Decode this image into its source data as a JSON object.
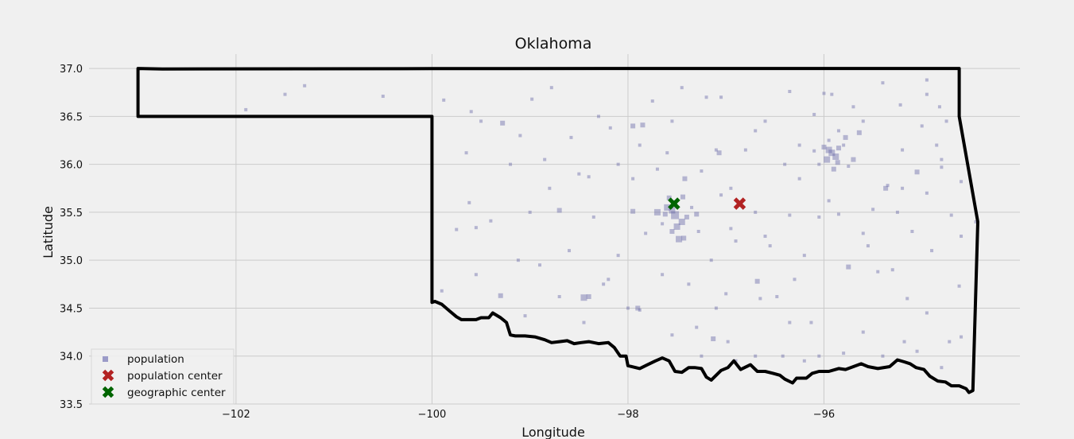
{
  "chart_data": {
    "type": "scatter",
    "title": "Oklahoma",
    "xlabel": "Longitude",
    "ylabel": "Latitude",
    "xlim": [
      -103.5,
      -94.0
    ],
    "ylim": [
      33.5,
      37.15
    ],
    "xticks": [
      -102,
      -100,
      -98,
      -96
    ],
    "xtick_labels": [
      "−102",
      "−100",
      "−98",
      "−96"
    ],
    "yticks": [
      33.5,
      34.0,
      34.5,
      35.0,
      35.5,
      36.0,
      36.5,
      37.0
    ],
    "ytick_labels": [
      "33.5",
      "34.0",
      "34.5",
      "35.0",
      "35.5",
      "36.0",
      "36.5",
      "37.0"
    ],
    "grid": true,
    "legend_position": "lower-left",
    "legend": [
      {
        "label": "population",
        "marker": "square",
        "color": "#9b9bc8"
      },
      {
        "label": "population center",
        "marker": "x",
        "color": "#b22222"
      },
      {
        "label": "geographic center",
        "marker": "x",
        "color": "#006400"
      }
    ],
    "colors": {
      "background": "#f0f0f0",
      "grid": "#cbcbcb",
      "population": "#6a6aa8",
      "population_center": "#b22222",
      "geographic_center": "#006400",
      "boundary": "#000000"
    },
    "series": [
      {
        "name": "population center",
        "x": [
          -96.86
        ],
        "y": [
          35.59
        ]
      },
      {
        "name": "geographic center",
        "x": [
          -97.53
        ],
        "y": [
          35.59
        ]
      },
      {
        "name": "population",
        "points": [
          [
            -97.52,
            35.47,
            5
          ],
          [
            -97.55,
            35.52,
            4
          ],
          [
            -97.6,
            35.55,
            4
          ],
          [
            -97.45,
            35.4,
            4
          ],
          [
            -97.5,
            35.35,
            4
          ],
          [
            -97.4,
            35.45,
            3
          ],
          [
            -97.62,
            35.48,
            3
          ],
          [
            -97.48,
            35.22,
            4
          ],
          [
            -97.43,
            35.23,
            3
          ],
          [
            -97.52,
            35.6,
            3
          ],
          [
            -97.58,
            35.65,
            3
          ],
          [
            -97.7,
            35.5,
            4
          ],
          [
            -97.3,
            35.48,
            3
          ],
          [
            -97.44,
            35.66,
            3
          ],
          [
            -97.42,
            35.85,
            3
          ],
          [
            -97.55,
            35.3,
            3
          ],
          [
            -97.65,
            35.38,
            2
          ],
          [
            -97.35,
            35.55,
            2
          ],
          [
            -97.28,
            35.3,
            2
          ],
          [
            -97.95,
            35.51,
            3
          ],
          [
            -97.82,
            35.28,
            2
          ],
          [
            -95.92,
            36.12,
            4
          ],
          [
            -95.95,
            36.15,
            4
          ],
          [
            -95.88,
            36.08,
            4
          ],
          [
            -95.97,
            36.05,
            4
          ],
          [
            -95.86,
            36.02,
            3
          ],
          [
            -96.0,
            36.18,
            3
          ],
          [
            -95.8,
            36.2,
            2
          ],
          [
            -95.78,
            36.28,
            3
          ],
          [
            -95.85,
            36.35,
            2
          ],
          [
            -95.7,
            36.05,
            3
          ],
          [
            -95.9,
            35.95,
            3
          ],
          [
            -96.05,
            36.0,
            2
          ],
          [
            -95.64,
            36.33,
            3
          ],
          [
            -96.1,
            36.14,
            2
          ],
          [
            -95.95,
            36.25,
            2
          ],
          [
            -95.85,
            36.17,
            3
          ],
          [
            -95.75,
            35.98,
            2
          ],
          [
            -95.6,
            36.45,
            2
          ],
          [
            -97.07,
            36.12,
            3
          ],
          [
            -97.1,
            36.15,
            2
          ],
          [
            -97.2,
            36.7,
            2
          ],
          [
            -97.05,
            36.7,
            2
          ],
          [
            -97.85,
            36.41,
            3
          ],
          [
            -97.95,
            36.4,
            3
          ],
          [
            -98.45,
            34.61,
            4
          ],
          [
            -98.4,
            34.62,
            3
          ],
          [
            -98.25,
            34.75,
            2
          ],
          [
            -97.9,
            34.5,
            3
          ],
          [
            -98.0,
            34.5,
            2
          ],
          [
            -96.68,
            34.78,
            3
          ],
          [
            -97.13,
            34.18,
            3
          ],
          [
            -96.42,
            34.0,
            2
          ],
          [
            -95.45,
            34.88,
            2
          ],
          [
            -95.75,
            34.93,
            3
          ],
          [
            -95.05,
            35.92,
            3
          ],
          [
            -94.95,
            35.7,
            2
          ],
          [
            -95.37,
            35.75,
            3
          ],
          [
            -95.2,
            35.75,
            2
          ],
          [
            -94.8,
            36.05,
            2
          ],
          [
            -94.82,
            36.6,
            2
          ],
          [
            -94.95,
            36.88,
            2
          ],
          [
            -95.22,
            36.62,
            2
          ],
          [
            -94.7,
            35.47,
            2
          ],
          [
            -94.45,
            35.4,
            2
          ],
          [
            -94.6,
            35.25,
            2
          ],
          [
            -95.85,
            35.48,
            2
          ],
          [
            -96.35,
            35.47,
            2
          ],
          [
            -96.6,
            35.25,
            2
          ],
          [
            -96.95,
            35.33,
            2
          ],
          [
            -96.48,
            34.62,
            2
          ],
          [
            -98.98,
            36.68,
            2
          ],
          [
            -99.28,
            36.43,
            3
          ],
          [
            -99.4,
            35.41,
            2
          ],
          [
            -99.55,
            35.34,
            2
          ],
          [
            -99.3,
            34.63,
            3
          ],
          [
            -99.0,
            35.5,
            2
          ],
          [
            -98.7,
            35.52,
            3
          ],
          [
            -98.1,
            35.05,
            2
          ],
          [
            -98.2,
            34.8,
            2
          ],
          [
            -97.65,
            34.85,
            2
          ],
          [
            -97.38,
            34.75,
            2
          ],
          [
            -97.1,
            34.5,
            2
          ],
          [
            -96.98,
            34.15,
            2
          ],
          [
            -96.7,
            34.0,
            2
          ],
          [
            -96.9,
            33.95,
            2
          ],
          [
            -96.35,
            34.35,
            2
          ],
          [
            -96.13,
            34.35,
            2
          ],
          [
            -95.6,
            34.25,
            2
          ],
          [
            -95.4,
            34.0,
            2
          ],
          [
            -94.8,
            33.88,
            2
          ],
          [
            -94.72,
            34.15,
            2
          ],
          [
            -95.3,
            34.9,
            2
          ],
          [
            -95.6,
            35.28,
            2
          ],
          [
            -95.95,
            35.62,
            2
          ],
          [
            -96.05,
            35.45,
            2
          ],
          [
            -96.25,
            35.85,
            2
          ],
          [
            -96.4,
            36.0,
            2
          ],
          [
            -96.7,
            36.35,
            2
          ],
          [
            -97.45,
            36.8,
            2
          ],
          [
            -97.75,
            36.66,
            2
          ],
          [
            -98.78,
            36.8,
            2
          ],
          [
            -99.88,
            36.67,
            2
          ],
          [
            -101.5,
            36.73,
            2
          ],
          [
            -101.3,
            36.82,
            2
          ],
          [
            -100.5,
            36.71,
            2
          ],
          [
            -101.9,
            36.57,
            2
          ],
          [
            -99.6,
            36.55,
            2
          ],
          [
            -99.5,
            36.45,
            2
          ],
          [
            -99.1,
            36.3,
            2
          ],
          [
            -98.58,
            36.28,
            2
          ],
          [
            -98.18,
            36.38,
            2
          ],
          [
            -98.3,
            36.5,
            2
          ],
          [
            -97.88,
            36.2,
            2
          ],
          [
            -97.25,
            35.93,
            2
          ],
          [
            -97.6,
            36.12,
            2
          ],
          [
            -97.95,
            35.85,
            2
          ],
          [
            -98.4,
            35.87,
            2
          ],
          [
            -98.8,
            35.75,
            2
          ],
          [
            -99.62,
            35.6,
            2
          ],
          [
            -99.75,
            35.32,
            2
          ],
          [
            -99.9,
            34.68,
            2
          ],
          [
            -99.55,
            34.85,
            2
          ],
          [
            -99.05,
            34.42,
            2
          ],
          [
            -98.7,
            34.62,
            2
          ],
          [
            -98.45,
            34.35,
            2
          ],
          [
            -97.88,
            34.48,
            2
          ],
          [
            -97.55,
            34.22,
            2
          ],
          [
            -97.25,
            34.0,
            2
          ],
          [
            -96.2,
            33.95,
            2
          ],
          [
            -96.05,
            34.0,
            2
          ],
          [
            -95.8,
            34.03,
            2
          ],
          [
            -95.18,
            34.15,
            2
          ],
          [
            -95.05,
            34.05,
            2
          ],
          [
            -94.6,
            34.2,
            2
          ],
          [
            -94.62,
            34.73,
            2
          ],
          [
            -94.9,
            35.1,
            2
          ],
          [
            -95.1,
            35.3,
            2
          ],
          [
            -95.25,
            35.5,
            2
          ],
          [
            -95.5,
            35.53,
            2
          ],
          [
            -95.35,
            35.78,
            2
          ],
          [
            -95.2,
            36.15,
            2
          ],
          [
            -95.0,
            36.4,
            2
          ],
          [
            -94.75,
            36.45,
            2
          ],
          [
            -94.85,
            36.2,
            2
          ],
          [
            -94.6,
            35.82,
            2
          ],
          [
            -94.8,
            35.97,
            2
          ],
          [
            -96.0,
            36.74,
            2
          ],
          [
            -95.92,
            36.73,
            2
          ],
          [
            -96.35,
            36.76,
            2
          ],
          [
            -96.6,
            36.45,
            2
          ],
          [
            -96.8,
            36.15,
            2
          ],
          [
            -96.95,
            35.75,
            2
          ],
          [
            -97.05,
            35.68,
            2
          ],
          [
            -96.7,
            35.5,
            2
          ],
          [
            -96.9,
            35.2,
            2
          ],
          [
            -97.15,
            35.0,
            2
          ],
          [
            -96.55,
            35.15,
            2
          ],
          [
            -96.2,
            35.05,
            2
          ],
          [
            -96.3,
            34.8,
            2
          ],
          [
            -96.65,
            34.6,
            2
          ],
          [
            -97.0,
            34.65,
            2
          ],
          [
            -97.3,
            34.3,
            2
          ],
          [
            -95.55,
            35.15,
            2
          ],
          [
            -95.15,
            34.6,
            2
          ],
          [
            -94.95,
            34.45,
            2
          ],
          [
            -98.6,
            35.1,
            2
          ],
          [
            -98.9,
            34.95,
            2
          ],
          [
            -99.12,
            35.0,
            2
          ],
          [
            -98.35,
            35.45,
            2
          ],
          [
            -98.5,
            35.9,
            2
          ],
          [
            -98.85,
            36.05,
            2
          ],
          [
            -99.2,
            36.0,
            2
          ],
          [
            -99.65,
            36.12,
            2
          ],
          [
            -98.1,
            36.0,
            2
          ],
          [
            -97.7,
            35.95,
            2
          ],
          [
            -97.55,
            36.45,
            2
          ],
          [
            -96.25,
            36.2,
            2
          ],
          [
            -96.1,
            36.52,
            2
          ],
          [
            -95.7,
            36.6,
            2
          ],
          [
            -95.4,
            36.85,
            2
          ],
          [
            -94.95,
            36.73,
            2
          ]
        ]
      }
    ],
    "boundary": [
      [
        -103.0,
        37.0
      ],
      [
        -102.75,
        36.995
      ],
      [
        -100.0,
        36.998
      ],
      [
        -98.0,
        37.0
      ],
      [
        -96.0,
        37.0
      ],
      [
        -94.62,
        37.0
      ],
      [
        -94.62,
        36.5
      ],
      [
        -94.43,
        35.4
      ],
      [
        -94.48,
        33.64
      ],
      [
        -94.52,
        33.62
      ],
      [
        -94.55,
        33.66
      ],
      [
        -94.62,
        33.69
      ],
      [
        -94.7,
        33.69
      ],
      [
        -94.76,
        33.73
      ],
      [
        -94.84,
        33.74
      ],
      [
        -94.92,
        33.79
      ],
      [
        -94.98,
        33.86
      ],
      [
        -95.06,
        33.88
      ],
      [
        -95.12,
        33.92
      ],
      [
        -95.18,
        33.94
      ],
      [
        -95.25,
        33.96
      ],
      [
        -95.33,
        33.89
      ],
      [
        -95.45,
        33.87
      ],
      [
        -95.55,
        33.89
      ],
      [
        -95.62,
        33.92
      ],
      [
        -95.7,
        33.89
      ],
      [
        -95.78,
        33.86
      ],
      [
        -95.85,
        33.87
      ],
      [
        -95.95,
        33.84
      ],
      [
        -96.05,
        33.84
      ],
      [
        -96.12,
        33.82
      ],
      [
        -96.18,
        33.77
      ],
      [
        -96.28,
        33.77
      ],
      [
        -96.32,
        33.72
      ],
      [
        -96.4,
        33.76
      ],
      [
        -96.45,
        33.8
      ],
      [
        -96.52,
        33.82
      ],
      [
        -96.6,
        33.84
      ],
      [
        -96.68,
        33.84
      ],
      [
        -96.75,
        33.91
      ],
      [
        -96.85,
        33.86
      ],
      [
        -96.92,
        33.95
      ],
      [
        -96.98,
        33.88
      ],
      [
        -97.05,
        33.85
      ],
      [
        -97.1,
        33.8
      ],
      [
        -97.15,
        33.75
      ],
      [
        -97.2,
        33.78
      ],
      [
        -97.25,
        33.87
      ],
      [
        -97.32,
        33.88
      ],
      [
        -97.38,
        33.88
      ],
      [
        -97.45,
        33.83
      ],
      [
        -97.52,
        33.84
      ],
      [
        -97.58,
        33.95
      ],
      [
        -97.65,
        33.98
      ],
      [
        -97.72,
        33.95
      ],
      [
        -97.8,
        33.91
      ],
      [
        -97.88,
        33.87
      ],
      [
        -98.0,
        33.9
      ],
      [
        -98.02,
        34.0
      ],
      [
        -98.08,
        34.0
      ],
      [
        -98.14,
        34.09
      ],
      [
        -98.2,
        34.14
      ],
      [
        -98.3,
        34.13
      ],
      [
        -98.4,
        34.15
      ],
      [
        -98.48,
        34.14
      ],
      [
        -98.55,
        34.13
      ],
      [
        -98.62,
        34.16
      ],
      [
        -98.7,
        34.15
      ],
      [
        -98.78,
        34.14
      ],
      [
        -98.85,
        34.17
      ],
      [
        -98.95,
        34.2
      ],
      [
        -99.05,
        34.21
      ],
      [
        -99.15,
        34.21
      ],
      [
        -99.2,
        34.22
      ],
      [
        -99.24,
        34.35
      ],
      [
        -99.3,
        34.4
      ],
      [
        -99.38,
        34.45
      ],
      [
        -99.42,
        34.4
      ],
      [
        -99.5,
        34.4
      ],
      [
        -99.55,
        34.38
      ],
      [
        -99.62,
        34.38
      ],
      [
        -99.7,
        34.38
      ],
      [
        -99.75,
        34.41
      ],
      [
        -99.82,
        34.47
      ],
      [
        -99.9,
        34.54
      ],
      [
        -99.97,
        34.57
      ],
      [
        -100.0,
        34.56
      ],
      [
        -100.0,
        36.5
      ],
      [
        -103.0,
        36.5
      ],
      [
        -103.0,
        37.0
      ]
    ]
  }
}
